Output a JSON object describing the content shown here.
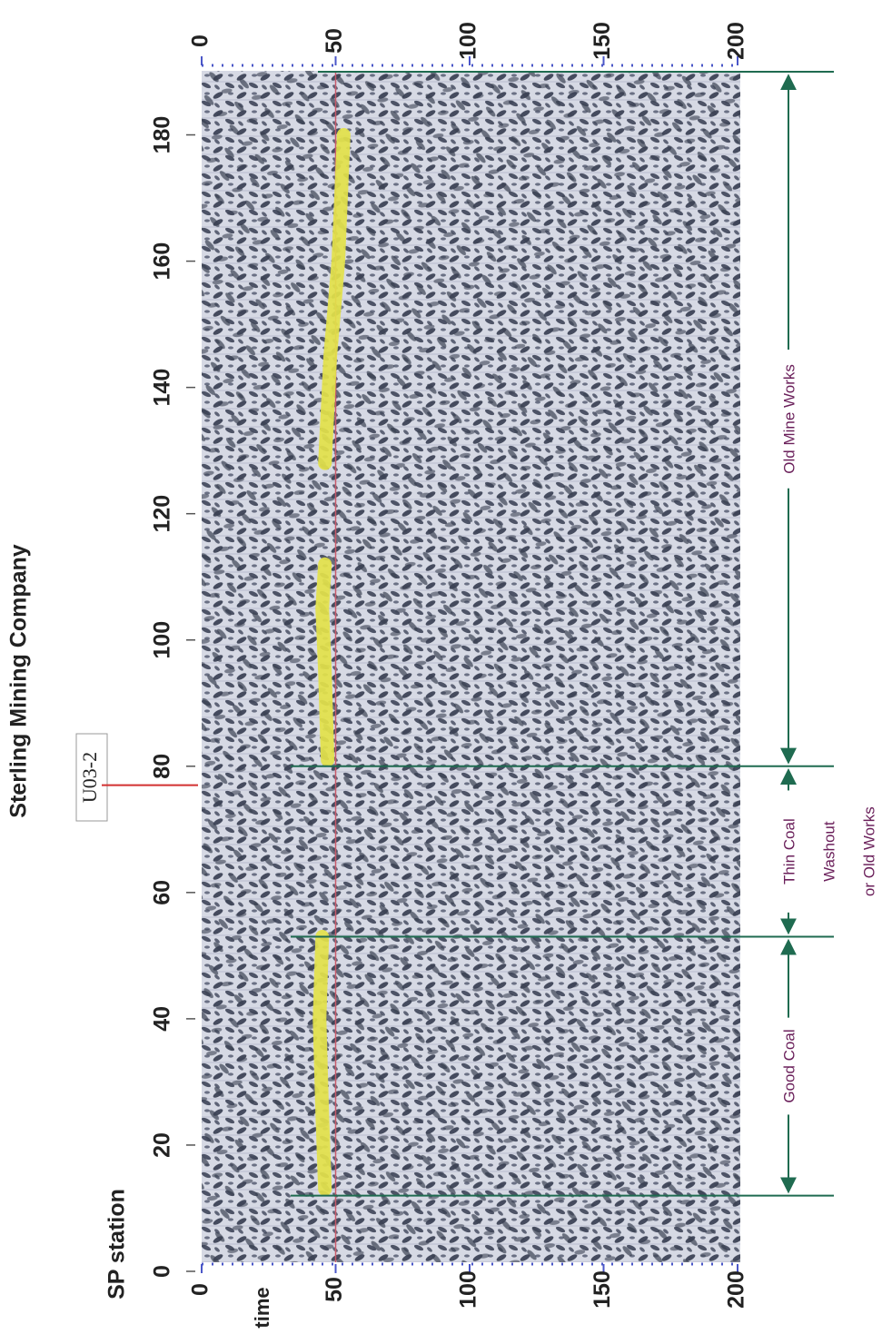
{
  "chart_data": {
    "type": "seismic-section",
    "title": "Sterling Mining Company",
    "line_label": "U03-2",
    "line_position": 77,
    "xlabel": "SP station",
    "ylabel": "time",
    "xlim": [
      0,
      190
    ],
    "xticks": [
      0,
      20,
      40,
      60,
      80,
      100,
      120,
      140,
      160,
      180
    ],
    "ylim": [
      0,
      200
    ],
    "yticks": [
      0,
      50,
      100,
      150,
      200
    ],
    "reference_time": 50,
    "horizon_color": "#e3e24a",
    "x": [
      13,
      25,
      40,
      53,
      67,
      81,
      95,
      105,
      112,
      120,
      128,
      145,
      160,
      180
    ],
    "values": [
      46,
      45,
      44,
      45,
      null,
      47,
      46,
      45,
      46,
      null,
      46,
      48,
      51,
      53
    ],
    "zones": [
      {
        "from": 12,
        "to": 53,
        "label": [
          "Good Coal"
        ]
      },
      {
        "from": 53,
        "to": 80,
        "label": [
          "Thin Coal",
          "Washout",
          "or Old Works"
        ]
      },
      {
        "from": 80,
        "to": 190,
        "label": [
          "Old Mine Works"
        ]
      }
    ]
  }
}
